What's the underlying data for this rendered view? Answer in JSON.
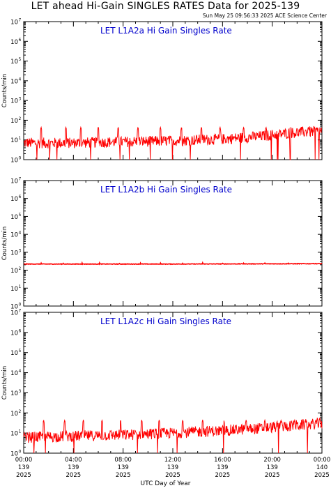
{
  "header": {
    "title": "LET ahead Hi-Gain SINGLES RATES Data for 2025-139",
    "timestamp": "Sun May 25 09:56:33 2025 ACE Science Center"
  },
  "x_axis_label": "UTC Day of Year",
  "colors": {
    "trace": "#ff0000",
    "panel_title": "#0000cc",
    "axes": "#000000"
  },
  "chart_data": [
    {
      "type": "line",
      "title": "LET L1A2a Hi Gain Singles Rate",
      "ylabel": "Counts/min",
      "yscale": "log",
      "ylim": [
        1,
        10000000
      ],
      "y_ticks": [
        {
          "base": "10",
          "exp": "0"
        },
        {
          "base": "10",
          "exp": "1"
        },
        {
          "base": "10",
          "exp": "2"
        },
        {
          "base": "10",
          "exp": "3"
        },
        {
          "base": "10",
          "exp": "4"
        },
        {
          "base": "10",
          "exp": "5"
        },
        {
          "base": "10",
          "exp": "6"
        },
        {
          "base": "10",
          "exp": "7"
        }
      ],
      "xlim_hours": [
        0,
        24
      ],
      "series": [
        {
          "baseline": [
            [
              0,
              7
            ],
            [
              4,
              7
            ],
            [
              8,
              8
            ],
            [
              12,
              9
            ],
            [
              16,
              11
            ],
            [
              19,
              15
            ],
            [
              22,
              24
            ],
            [
              24,
              28
            ]
          ],
          "spikes_at_hours": [
            1.4,
            3.4,
            4.6,
            6.0,
            7.6,
            9.2,
            11.0,
            12.7,
            14.3,
            15.8,
            17.7,
            19.5,
            21.5,
            22.9
          ],
          "spike_value": 45,
          "dropouts_to": 1
        }
      ]
    },
    {
      "type": "line",
      "title": "LET L1A2b Hi Gain Singles Rate",
      "ylabel": "Counts/min",
      "yscale": "log",
      "ylim": [
        1,
        10000000
      ],
      "y_ticks": [
        {
          "base": "10",
          "exp": "0"
        },
        {
          "base": "10",
          "exp": "1"
        },
        {
          "base": "10",
          "exp": "2"
        },
        {
          "base": "10",
          "exp": "3"
        },
        {
          "base": "10",
          "exp": "4"
        },
        {
          "base": "10",
          "exp": "5"
        },
        {
          "base": "10",
          "exp": "6"
        },
        {
          "base": "10",
          "exp": "7"
        }
      ],
      "xlim_hours": [
        0,
        24
      ],
      "series": [
        {
          "baseline": [
            [
              0,
              220
            ],
            [
              12,
              220
            ],
            [
              24,
              230
            ]
          ],
          "spikes_at_hours": [
            1.4,
            3.2,
            4.7,
            6.1,
            7.7,
            9.4,
            11.0,
            12.8,
            14.4,
            16.0,
            17.7,
            19.4,
            21.3,
            22.1,
            23.3
          ],
          "spike_value": 260,
          "dropouts_to": null
        }
      ]
    },
    {
      "type": "line",
      "title": "LET L1A2c Hi Gain Singles Rate",
      "ylabel": "Counts/min",
      "yscale": "log",
      "ylim": [
        1,
        10000000
      ],
      "y_ticks": [
        {
          "base": "10",
          "exp": "0"
        },
        {
          "base": "10",
          "exp": "1"
        },
        {
          "base": "10",
          "exp": "2"
        },
        {
          "base": "10",
          "exp": "3"
        },
        {
          "base": "10",
          "exp": "4"
        },
        {
          "base": "10",
          "exp": "5"
        },
        {
          "base": "10",
          "exp": "6"
        },
        {
          "base": "10",
          "exp": "7"
        }
      ],
      "xlim_hours": [
        0,
        24
      ],
      "series": [
        {
          "baseline": [
            [
              0,
              6
            ],
            [
              4,
              7
            ],
            [
              8,
              8
            ],
            [
              12,
              10
            ],
            [
              16,
              13
            ],
            [
              19,
              17
            ],
            [
              22,
              24
            ],
            [
              24,
              30
            ]
          ],
          "spikes_at_hours": [
            1.6,
            3.3,
            4.8,
            6.3,
            7.8,
            9.5,
            10.9,
            12.8,
            14.4,
            16.1,
            17.9,
            19.4,
            20.7,
            21.8,
            22.7,
            23.5
          ],
          "spike_value": 45,
          "dropouts_to": 1
        }
      ]
    }
  ],
  "x_ticks": [
    {
      "hours": 0,
      "time": "00:00",
      "doy": "139",
      "year": "2025"
    },
    {
      "hours": 4,
      "time": "04:00",
      "doy": "139",
      "year": "2025"
    },
    {
      "hours": 8,
      "time": "08:00",
      "doy": "139",
      "year": "2025"
    },
    {
      "hours": 12,
      "time": "12:00",
      "doy": "139",
      "year": "2025"
    },
    {
      "hours": 16,
      "time": "16:00",
      "doy": "139",
      "year": "2025"
    },
    {
      "hours": 20,
      "time": "20:00",
      "doy": "139",
      "year": "2025"
    },
    {
      "hours": 24,
      "time": "00:00",
      "doy": "140",
      "year": "2025"
    }
  ]
}
